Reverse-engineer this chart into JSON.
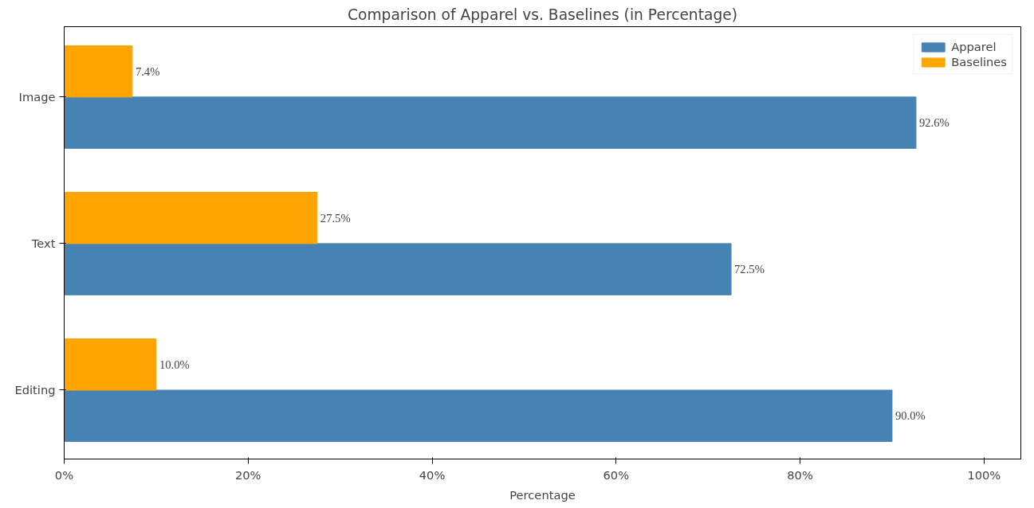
{
  "chart_data": {
    "type": "bar",
    "orientation": "horizontal",
    "title": "Comparison of Apparel vs. Baselines (in Percentage)",
    "xlabel": "Percentage",
    "categories": [
      "Image",
      "Text",
      "Editing"
    ],
    "series": [
      {
        "name": "Apparel",
        "color": "#4682b4",
        "values": [
          92.6,
          72.5,
          90.0
        ],
        "value_labels": [
          "92.6%",
          "72.5%",
          "90.0%"
        ]
      },
      {
        "name": "Baselines",
        "color": "#ffa500",
        "values": [
          7.4,
          27.5,
          10.0
        ],
        "value_labels": [
          "7.4%",
          "27.5%",
          "10.0%"
        ]
      }
    ],
    "xlim": [
      0,
      104
    ],
    "xticks": [
      {
        "value": 0,
        "label": "0%"
      },
      {
        "value": 20,
        "label": "20%"
      },
      {
        "value": 40,
        "label": "40%"
      },
      {
        "value": 60,
        "label": "60%"
      },
      {
        "value": 80,
        "label": "80%"
      },
      {
        "value": 100,
        "label": "100%"
      }
    ],
    "legend": "top right",
    "grid": false
  }
}
